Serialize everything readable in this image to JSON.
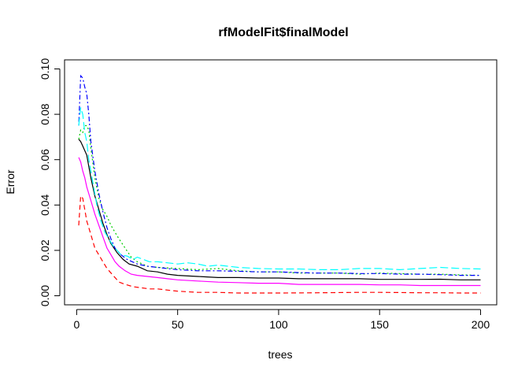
{
  "chart_data": {
    "type": "line",
    "title": "rfModelFit$finalModel",
    "xlabel": "trees",
    "ylabel": "Error",
    "xlim": [
      -6,
      208
    ],
    "ylim": [
      -0.004,
      0.104
    ],
    "x_ticks": [
      0,
      50,
      100,
      150,
      200
    ],
    "x_tick_labels": [
      "0",
      "50",
      "100",
      "150",
      "200"
    ],
    "y_ticks": [
      0.0,
      0.02,
      0.04,
      0.06,
      0.08,
      0.1
    ],
    "y_tick_labels": [
      "0.00",
      "0.02",
      "0.04",
      "0.06",
      "0.08",
      "0.10"
    ],
    "grid": false,
    "legend": "none",
    "series": [
      {
        "color": "#000000",
        "dash": "solid",
        "points": [
          [
            1,
            0.069
          ],
          [
            2,
            0.068
          ],
          [
            3,
            0.066
          ],
          [
            5,
            0.062
          ],
          [
            7,
            0.052
          ],
          [
            9,
            0.044
          ],
          [
            11,
            0.038
          ],
          [
            13,
            0.032
          ],
          [
            15,
            0.027
          ],
          [
            17,
            0.023
          ],
          [
            20,
            0.019
          ],
          [
            23,
            0.016
          ],
          [
            26,
            0.014
          ],
          [
            30,
            0.013
          ],
          [
            35,
            0.011
          ],
          [
            40,
            0.0105
          ],
          [
            45,
            0.0095
          ],
          [
            50,
            0.009
          ],
          [
            60,
            0.0085
          ],
          [
            70,
            0.008
          ],
          [
            80,
            0.008
          ],
          [
            90,
            0.0078
          ],
          [
            100,
            0.0078
          ],
          [
            110,
            0.0075
          ],
          [
            120,
            0.0075
          ],
          [
            130,
            0.0075
          ],
          [
            140,
            0.0075
          ],
          [
            150,
            0.0072
          ],
          [
            160,
            0.0072
          ],
          [
            170,
            0.0072
          ],
          [
            180,
            0.0073
          ],
          [
            190,
            0.007
          ],
          [
            200,
            0.007
          ]
        ]
      },
      {
        "color": "#FF0000",
        "dash": "dashed",
        "points": [
          [
            1,
            0.031
          ],
          [
            2,
            0.044
          ],
          [
            3,
            0.043
          ],
          [
            4,
            0.038
          ],
          [
            5,
            0.033
          ],
          [
            7,
            0.027
          ],
          [
            9,
            0.021
          ],
          [
            11,
            0.018
          ],
          [
            13,
            0.015
          ],
          [
            15,
            0.012
          ],
          [
            18,
            0.009
          ],
          [
            21,
            0.006
          ],
          [
            24,
            0.005
          ],
          [
            28,
            0.004
          ],
          [
            32,
            0.0035
          ],
          [
            36,
            0.003
          ],
          [
            40,
            0.003
          ],
          [
            45,
            0.0025
          ],
          [
            50,
            0.002
          ],
          [
            60,
            0.0015
          ],
          [
            70,
            0.0015
          ],
          [
            80,
            0.0012
          ],
          [
            90,
            0.0012
          ],
          [
            100,
            0.0012
          ],
          [
            120,
            0.0013
          ],
          [
            140,
            0.0015
          ],
          [
            150,
            0.0015
          ],
          [
            160,
            0.0014
          ],
          [
            170,
            0.0013
          ],
          [
            180,
            0.0013
          ],
          [
            190,
            0.0012
          ],
          [
            200,
            0.0012
          ]
        ]
      },
      {
        "color": "#00CD00",
        "dash": "dotted",
        "points": [
          [
            1,
            0.069
          ],
          [
            2,
            0.073
          ],
          [
            3,
            0.072
          ],
          [
            4,
            0.075
          ],
          [
            5,
            0.075
          ],
          [
            6,
            0.073
          ],
          [
            7,
            0.065
          ],
          [
            9,
            0.052
          ],
          [
            11,
            0.043
          ],
          [
            13,
            0.038
          ],
          [
            15,
            0.035
          ],
          [
            17,
            0.031
          ],
          [
            19,
            0.028
          ],
          [
            21,
            0.025
          ],
          [
            24,
            0.021
          ],
          [
            27,
            0.017
          ],
          [
            30,
            0.015
          ],
          [
            35,
            0.013
          ],
          [
            40,
            0.0125
          ],
          [
            50,
            0.012
          ],
          [
            60,
            0.0115
          ],
          [
            70,
            0.012
          ],
          [
            80,
            0.011
          ],
          [
            90,
            0.0105
          ],
          [
            100,
            0.0105
          ],
          [
            110,
            0.01
          ],
          [
            120,
            0.01
          ],
          [
            130,
            0.01
          ],
          [
            140,
            0.0095
          ],
          [
            150,
            0.01
          ],
          [
            160,
            0.0098
          ],
          [
            170,
            0.0095
          ],
          [
            180,
            0.0095
          ],
          [
            190,
            0.0092
          ],
          [
            200,
            0.009
          ]
        ]
      },
      {
        "color": "#0000FF",
        "dash": "dotdash",
        "points": [
          [
            1,
            0.075
          ],
          [
            2,
            0.097
          ],
          [
            3,
            0.096
          ],
          [
            4,
            0.092
          ],
          [
            5,
            0.089
          ],
          [
            6,
            0.08
          ],
          [
            7,
            0.068
          ],
          [
            9,
            0.055
          ],
          [
            11,
            0.045
          ],
          [
            13,
            0.037
          ],
          [
            15,
            0.03
          ],
          [
            17,
            0.025
          ],
          [
            19,
            0.021
          ],
          [
            22,
            0.018
          ],
          [
            25,
            0.016
          ],
          [
            30,
            0.014
          ],
          [
            35,
            0.013
          ],
          [
            40,
            0.0125
          ],
          [
            50,
            0.0115
          ],
          [
            60,
            0.011
          ],
          [
            70,
            0.011
          ],
          [
            80,
            0.0108
          ],
          [
            90,
            0.0105
          ],
          [
            100,
            0.0105
          ],
          [
            110,
            0.0102
          ],
          [
            120,
            0.01
          ],
          [
            130,
            0.01
          ],
          [
            140,
            0.0098
          ],
          [
            150,
            0.0098
          ],
          [
            160,
            0.0095
          ],
          [
            170,
            0.0095
          ],
          [
            180,
            0.0093
          ],
          [
            190,
            0.009
          ],
          [
            200,
            0.009
          ]
        ]
      },
      {
        "color": "#00FFFF",
        "dash": "longdash",
        "points": [
          [
            1,
            0.075
          ],
          [
            2,
            0.083
          ],
          [
            3,
            0.08
          ],
          [
            4,
            0.072
          ],
          [
            5,
            0.068
          ],
          [
            6,
            0.06
          ],
          [
            8,
            0.05
          ],
          [
            10,
            0.04
          ],
          [
            12,
            0.033
          ],
          [
            14,
            0.028
          ],
          [
            16,
            0.025
          ],
          [
            18,
            0.022
          ],
          [
            20,
            0.02
          ],
          [
            22,
            0.018
          ],
          [
            25,
            0.0175
          ],
          [
            28,
            0.016
          ],
          [
            30,
            0.017
          ],
          [
            33,
            0.016
          ],
          [
            36,
            0.015
          ],
          [
            40,
            0.015
          ],
          [
            45,
            0.0145
          ],
          [
            50,
            0.014
          ],
          [
            55,
            0.0145
          ],
          [
            60,
            0.014
          ],
          [
            65,
            0.013
          ],
          [
            70,
            0.0135
          ],
          [
            75,
            0.013
          ],
          [
            80,
            0.0125
          ],
          [
            90,
            0.012
          ],
          [
            100,
            0.0118
          ],
          [
            110,
            0.0118
          ],
          [
            120,
            0.0115
          ],
          [
            130,
            0.0115
          ],
          [
            140,
            0.012
          ],
          [
            150,
            0.012
          ],
          [
            160,
            0.0115
          ],
          [
            170,
            0.012
          ],
          [
            180,
            0.0125
          ],
          [
            190,
            0.012
          ],
          [
            200,
            0.0118
          ]
        ]
      },
      {
        "color": "#FF00FF",
        "dash": "solid",
        "points": [
          [
            1,
            0.061
          ],
          [
            2,
            0.059
          ],
          [
            3,
            0.055
          ],
          [
            4,
            0.052
          ],
          [
            5,
            0.048
          ],
          [
            7,
            0.042
          ],
          [
            9,
            0.036
          ],
          [
            11,
            0.031
          ],
          [
            13,
            0.026
          ],
          [
            15,
            0.021
          ],
          [
            17,
            0.018
          ],
          [
            19,
            0.015
          ],
          [
            21,
            0.013
          ],
          [
            24,
            0.011
          ],
          [
            27,
            0.0095
          ],
          [
            30,
            0.009
          ],
          [
            35,
            0.0085
          ],
          [
            40,
            0.008
          ],
          [
            45,
            0.0075
          ],
          [
            50,
            0.007
          ],
          [
            60,
            0.0065
          ],
          [
            70,
            0.006
          ],
          [
            80,
            0.0058
          ],
          [
            90,
            0.0055
          ],
          [
            100,
            0.0055
          ],
          [
            110,
            0.005
          ],
          [
            120,
            0.005
          ],
          [
            130,
            0.005
          ],
          [
            140,
            0.005
          ],
          [
            150,
            0.0048
          ],
          [
            160,
            0.0048
          ],
          [
            170,
            0.0045
          ],
          [
            180,
            0.0045
          ],
          [
            190,
            0.0045
          ],
          [
            200,
            0.0045
          ]
        ]
      }
    ]
  }
}
